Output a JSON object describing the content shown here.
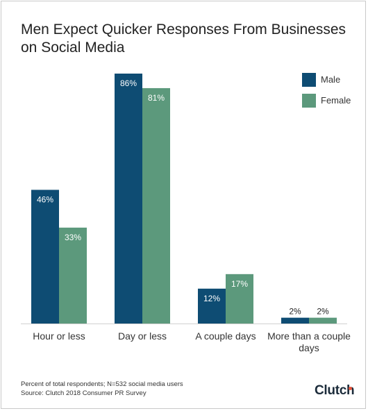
{
  "chart_data": {
    "type": "bar",
    "title": "Men Expect Quicker Responses From Businesses on Social Media",
    "categories": [
      "Hour or less",
      "Day or less",
      "A couple days",
      "More than a couple days"
    ],
    "series": [
      {
        "name": "Male",
        "values": [
          46,
          86,
          12,
          2
        ],
        "color": "#0e4c73"
      },
      {
        "name": "Female",
        "values": [
          33,
          81,
          17,
          2
        ],
        "color": "#5c997c"
      }
    ],
    "value_labels": {
      "Male": [
        "46%",
        "86%",
        "12%",
        "2%"
      ],
      "Female": [
        "33%",
        "81%",
        "17%",
        "2%"
      ]
    },
    "ylim": [
      0,
      86
    ],
    "xlabel": "",
    "ylabel": "",
    "grid": false,
    "legend_position": "top-right"
  },
  "footnote": {
    "line1": "Percent of total respondents; N=532 social media users",
    "line2": "Source: Clutch 2018 Consumer PR Survey"
  },
  "logo": {
    "text": "Clutch",
    "dot_color": "#e8553d"
  }
}
